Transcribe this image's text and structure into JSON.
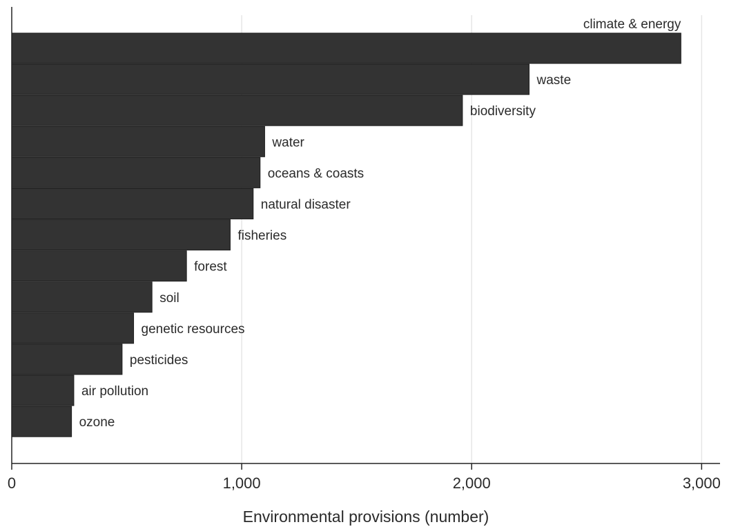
{
  "chart_data": {
    "type": "bar",
    "orientation": "horizontal",
    "title": "",
    "xlabel": "Environmental provisions (number)",
    "ylabel": "",
    "xlim": [
      0,
      3080
    ],
    "xticks": [
      0,
      1000,
      2000,
      3000
    ],
    "xtick_labels": [
      "0",
      "1,000",
      "2,000",
      "3,000"
    ],
    "grid": "vertical",
    "bar_color": "#333333",
    "categories": [
      "climate & energy",
      "waste",
      "biodiversity",
      "water",
      "oceans & coasts",
      "natural disaster",
      "fisheries",
      "forest",
      "soil",
      "genetic resources",
      "pesticides",
      "air pollution",
      "ozone"
    ],
    "values": [
      2910,
      2250,
      1960,
      1100,
      1080,
      1050,
      950,
      760,
      610,
      530,
      480,
      270,
      260
    ]
  }
}
